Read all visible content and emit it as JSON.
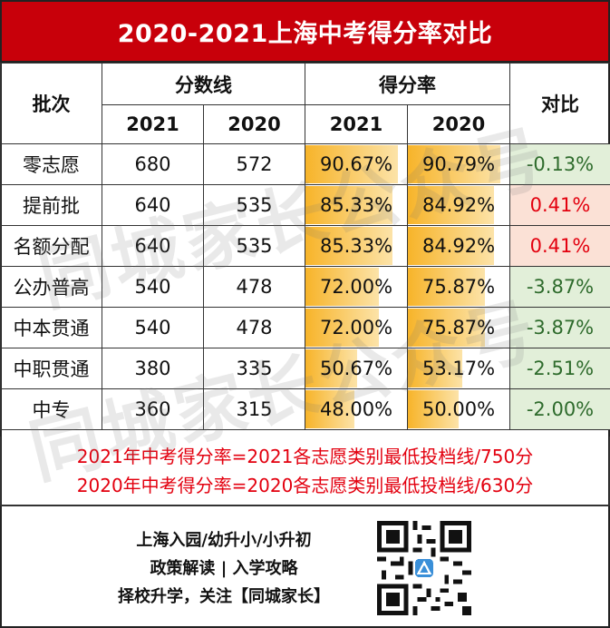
{
  "title": "2020-2021上海中考得分率对比",
  "header": {
    "batch": "批次",
    "score_line": "分数线",
    "rate": "得分率",
    "compare": "对比",
    "year_2021": "2021",
    "year_2020": "2020"
  },
  "rows": [
    {
      "batch": "零志愿",
      "s2021": "680",
      "s2020": "572",
      "r2021": "90.67%",
      "r2020": "90.79%",
      "cmp": "-0.13%",
      "r2021_value": 0.9067,
      "r2020_value": 0.9079
    },
    {
      "batch": "提前批",
      "s2021": "640",
      "s2020": "535",
      "r2021": "85.33%",
      "r2020": "84.92%",
      "cmp": "0.41%",
      "r2021_value": 0.8533,
      "r2020_value": 0.8492
    },
    {
      "batch": "名额分配",
      "s2021": "640",
      "s2020": "535",
      "r2021": "85.33%",
      "r2020": "84.92%",
      "cmp": "0.41%",
      "r2021_value": 0.8533,
      "r2020_value": 0.8492
    },
    {
      "batch": "公办普高",
      "s2021": "540",
      "s2020": "478",
      "r2021": "72.00%",
      "r2020": "75.87%",
      "cmp": "-3.87%",
      "r2021_value": 0.72,
      "r2020_value": 0.7587
    },
    {
      "batch": "中本贯通",
      "s2021": "540",
      "s2020": "478",
      "r2021": "72.00%",
      "r2020": "75.87%",
      "cmp": "-3.87%",
      "r2021_value": 0.72,
      "r2020_value": 0.7587
    },
    {
      "batch": "中职贯通",
      "s2021": "380",
      "s2020": "335",
      "r2021": "50.67%",
      "r2020": "53.17%",
      "cmp": "-2.51%",
      "r2021_value": 0.5067,
      "r2020_value": 0.5317
    },
    {
      "batch": "中专",
      "s2021": "360",
      "s2020": "315",
      "r2021": "48.00%",
      "r2020": "50.00%",
      "cmp": "-2.00%",
      "r2021_value": 0.48,
      "r2020_value": 0.5
    }
  ],
  "notes": {
    "line1": "2021年中考得分率=2021各志愿类别最低投档线/750分",
    "line2": "2020年中考得分率=2020各志愿类别最低投档线/630分"
  },
  "footer": {
    "line1": "上海入园/幼升小/小升初",
    "line2": "政策解读 | 入学攻略",
    "line3": "择校升学，关注【同城家长】"
  },
  "watermark": "同城家长公众号",
  "colors": {
    "title_bg": "#c8000a",
    "rate_bar": "#f7b42a",
    "negative_bg": "#e2efd9",
    "negative_text": "#2e6b2c",
    "positive_bg": "#fbe1d6",
    "positive_text": "#e3000f",
    "note_text": "#e3000f"
  }
}
